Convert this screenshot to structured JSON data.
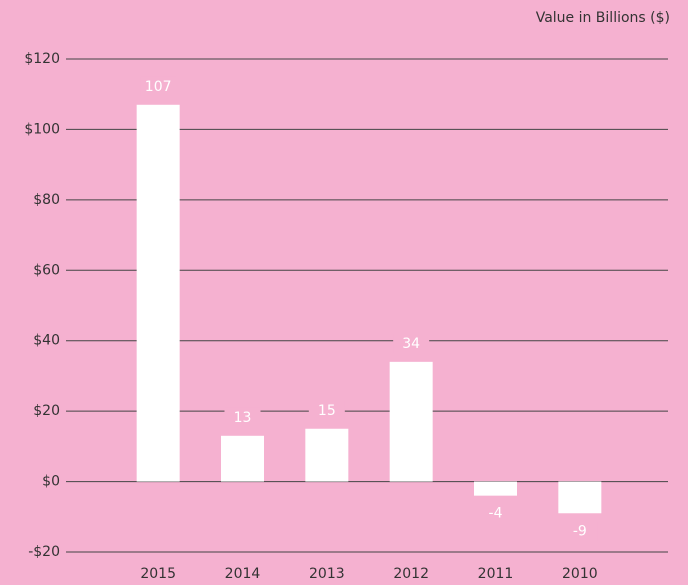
{
  "chart_data": {
    "type": "bar",
    "axis_label": "Value in Billions ($)",
    "categories": [
      "2015",
      "2014",
      "2013",
      "2012",
      "2011",
      "2010"
    ],
    "values": [
      107,
      13,
      15,
      34,
      -4,
      -9
    ],
    "color": "#ffffff",
    "background": "#f5b1d0",
    "ylim": [
      -20,
      120
    ],
    "yticks": [
      {
        "value": -20,
        "label": "-$20"
      },
      {
        "value": 0,
        "label": "$0"
      },
      {
        "value": 20,
        "label": "$20"
      },
      {
        "value": 40,
        "label": "$40"
      },
      {
        "value": 60,
        "label": "$60"
      },
      {
        "value": 80,
        "label": "$80"
      },
      {
        "value": 100,
        "label": "$100"
      },
      {
        "value": 120,
        "label": "$120"
      }
    ],
    "grid": true
  }
}
